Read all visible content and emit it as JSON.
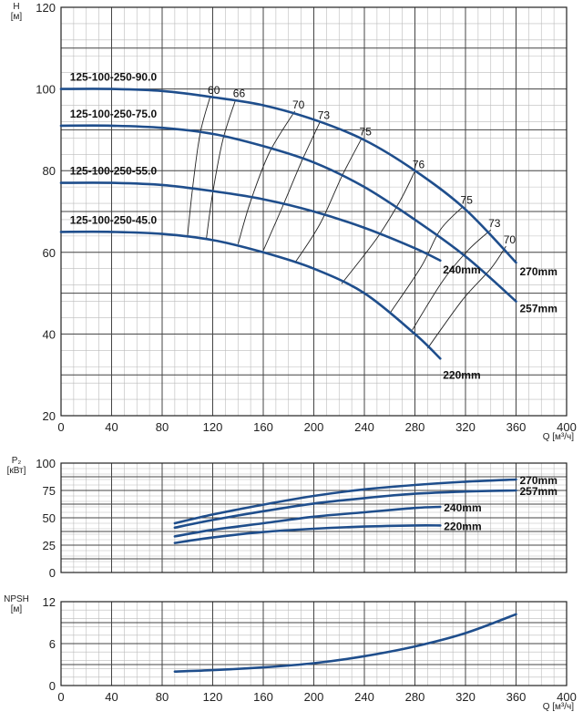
{
  "chart_data": [
    {
      "type": "line",
      "ylabel": [
        "H",
        "[м]"
      ],
      "xlabel": "Q [м³/ч]",
      "xlim": [
        0,
        400
      ],
      "ylim": [
        20,
        120
      ],
      "x_ticks": [
        "0",
        "40",
        "80",
        "120",
        "160",
        "200",
        "240",
        "280",
        "320",
        "360",
        "400"
      ],
      "y_ticks": [
        "20",
        "40",
        "60",
        "80",
        "100",
        "120"
      ],
      "grid": true,
      "series": [
        {
          "name": "270mm",
          "x": [
            0,
            40,
            80,
            120,
            160,
            200,
            240,
            280,
            320,
            360
          ],
          "values": [
            100,
            100,
            99.5,
            98,
            96,
            92.5,
            87.5,
            80,
            70.5,
            57.5
          ]
        },
        {
          "name": "257mm",
          "x": [
            0,
            40,
            80,
            120,
            160,
            200,
            240,
            280,
            320,
            360
          ],
          "values": [
            91,
            91,
            90.5,
            89,
            86,
            82,
            76,
            68,
            59,
            48
          ]
        },
        {
          "name": "240mm",
          "x": [
            0,
            40,
            80,
            120,
            160,
            200,
            240,
            280,
            300
          ],
          "values": [
            77,
            77,
            76.5,
            75,
            73,
            70,
            66,
            61,
            58
          ]
        },
        {
          "name": "220mm",
          "x": [
            0,
            40,
            80,
            120,
            160,
            200,
            240,
            280,
            300
          ],
          "values": [
            65,
            65,
            64.5,
            63,
            60,
            56,
            50,
            40,
            34
          ]
        }
      ],
      "annotations": [
        {
          "text": "125-100-250-90.0",
          "x": 7,
          "y": 102
        },
        {
          "text": "125-100-250-75.0",
          "x": 7,
          "y": 93
        },
        {
          "text": "125-100-250-55.0",
          "x": 7,
          "y": 79
        },
        {
          "text": "125-100-250-45.0",
          "x": 7,
          "y": 67
        }
      ],
      "efficiency_lines": [
        {
          "label": "60",
          "x": [
            100,
            104,
            110,
            118
          ],
          "y": [
            63.8,
            75.5,
            89,
            98.1
          ]
        },
        {
          "label": "66",
          "x": [
            115,
            120,
            128,
            138
          ],
          "y": [
            63.4,
            74.5,
            87.5,
            97.3
          ]
        },
        {
          "label": "70",
          "x": [
            140,
            150,
            165,
            185
          ],
          "y": [
            62,
            72.5,
            84.5,
            94.6
          ]
        },
        {
          "label": "73",
          "x": [
            160,
            175,
            190,
            205
          ],
          "y": [
            60.4,
            71,
            82,
            92
          ]
        },
        {
          "label": "75",
          "x": [
            185,
            205,
            222,
            238
          ],
          "y": [
            57.4,
            67,
            78.5,
            88
          ]
        },
        {
          "label": "76",
          "x": [
            222,
            250,
            268,
            280
          ],
          "y": [
            52.3,
            63.5,
            72.5,
            79.9
          ]
        },
        {
          "label": "75",
          "x": [
            260,
            285,
            300,
            318
          ],
          "y": [
            45,
            56.5,
            65.5,
            71.2
          ]
        },
        {
          "label": "73",
          "x": [
            278,
            302,
            322,
            340
          ],
          "y": [
            41,
            53,
            60.5,
            65.5
          ]
        },
        {
          "label": "70",
          "x": [
            290,
            318,
            340,
            352
          ],
          "y": [
            36.5,
            48.5,
            56,
            61.5
          ]
        }
      ]
    },
    {
      "type": "line",
      "ylabel": [
        "P₂",
        "[кВт]"
      ],
      "xlabel": "",
      "xlim": [
        0,
        400
      ],
      "ylim": [
        0,
        100
      ],
      "y_ticks": [
        "0",
        "25",
        "50",
        "75",
        "100"
      ],
      "grid": true,
      "series": [
        {
          "name": "270mm",
          "x": [
            90,
            120,
            160,
            200,
            240,
            280,
            320,
            360
          ],
          "values": [
            45,
            53,
            62,
            70,
            76,
            80,
            83,
            85
          ]
        },
        {
          "name": "257mm",
          "x": [
            90,
            120,
            160,
            200,
            240,
            280,
            320,
            360
          ],
          "values": [
            41,
            48,
            56,
            63,
            68,
            72,
            74,
            75
          ]
        },
        {
          "name": "240mm",
          "x": [
            90,
            120,
            160,
            200,
            240,
            280,
            300
          ],
          "values": [
            33,
            39,
            45,
            51,
            55,
            59,
            60
          ]
        },
        {
          "name": "220mm",
          "x": [
            90,
            120,
            160,
            200,
            240,
            280,
            300
          ],
          "values": [
            27,
            32,
            37,
            40,
            42,
            43,
            43
          ]
        }
      ]
    },
    {
      "type": "line",
      "ylabel": [
        "NPSH",
        "[м]"
      ],
      "xlabel": "Q [м³/ч]",
      "xlim": [
        0,
        400
      ],
      "ylim": [
        0,
        12
      ],
      "x_ticks": [
        "0",
        "40",
        "80",
        "120",
        "160",
        "200",
        "240",
        "280",
        "320",
        "360",
        "400"
      ],
      "y_ticks": [
        "0",
        "6",
        "12"
      ],
      "grid": true,
      "series": [
        {
          "name": "NPSH",
          "x": [
            90,
            120,
            160,
            200,
            240,
            280,
            320,
            360
          ],
          "values": [
            2,
            2.2,
            2.6,
            3.2,
            4.2,
            5.6,
            7.5,
            10.2
          ]
        }
      ]
    }
  ],
  "colors": {
    "curve": "#1f4e8c",
    "grid_major": "#444444",
    "grid_minor": "#bbbbbb"
  }
}
